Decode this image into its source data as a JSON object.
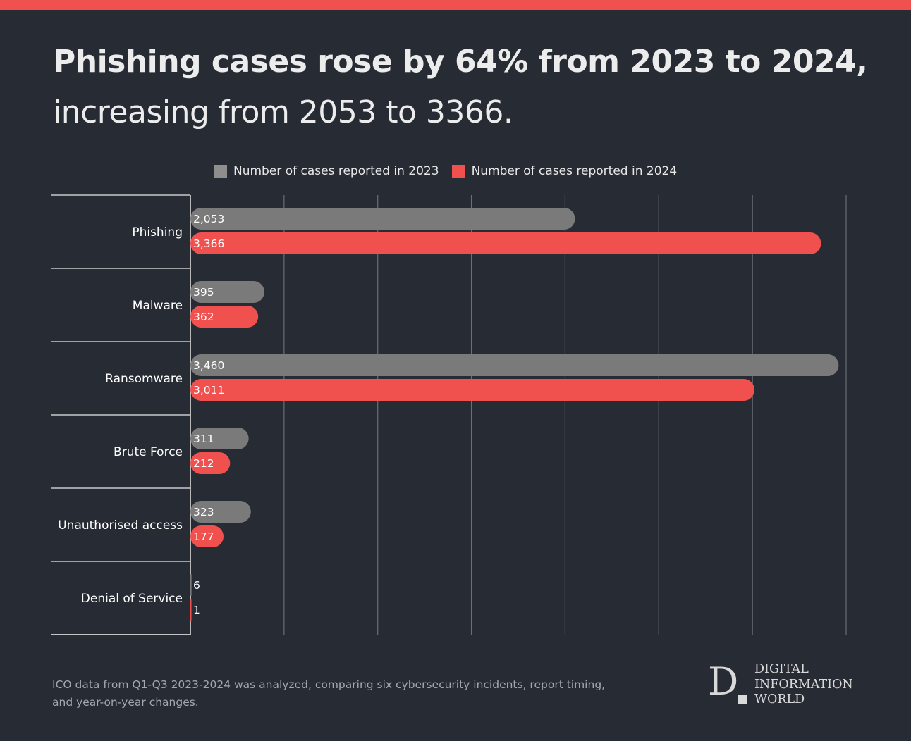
{
  "header": {
    "title_bold": "Phishing cases rose by 64% from 2023 to 2024,",
    "title_regular": "increasing from 2053 to 3366."
  },
  "colors": {
    "background": "#262b34",
    "accent": "#f0504e",
    "series_2023": "#7a7a7a",
    "series_2024": "#f0504e",
    "grid": "#6a6e75",
    "axis": "#e8e8e8"
  },
  "chart_data": {
    "type": "bar",
    "orientation": "horizontal",
    "categories": [
      "Phishing",
      "Malware",
      "Ransomware",
      "Brute Force",
      "Unauthorised access",
      "Denial of Service"
    ],
    "series": [
      {
        "name": "Number of cases reported in 2023",
        "values": [
          2053,
          395,
          3460,
          311,
          323,
          6
        ],
        "labels": [
          "2,053",
          "395",
          "3,460",
          "311",
          "323",
          "6"
        ]
      },
      {
        "name": "Number of cases reported in 2024",
        "values": [
          3366,
          362,
          3011,
          212,
          177,
          1
        ],
        "labels": [
          "3,366",
          "362",
          "3,011",
          "212",
          "177",
          "1"
        ]
      }
    ],
    "xlim": [
      0,
      3500
    ],
    "x_gridlines": [
      500,
      1000,
      1500,
      2000,
      2500,
      3000,
      3500
    ],
    "grid": true,
    "legend_position": "top"
  },
  "footer": {
    "note": "ICO data from Q1-Q3 2023-2024 was analyzed, comparing six cybersecurity incidents, report timing, and year-on-year changes.",
    "logo_letter": "D",
    "logo_words": [
      "DIGITAL",
      "INFORMATION",
      "WORLD"
    ]
  }
}
